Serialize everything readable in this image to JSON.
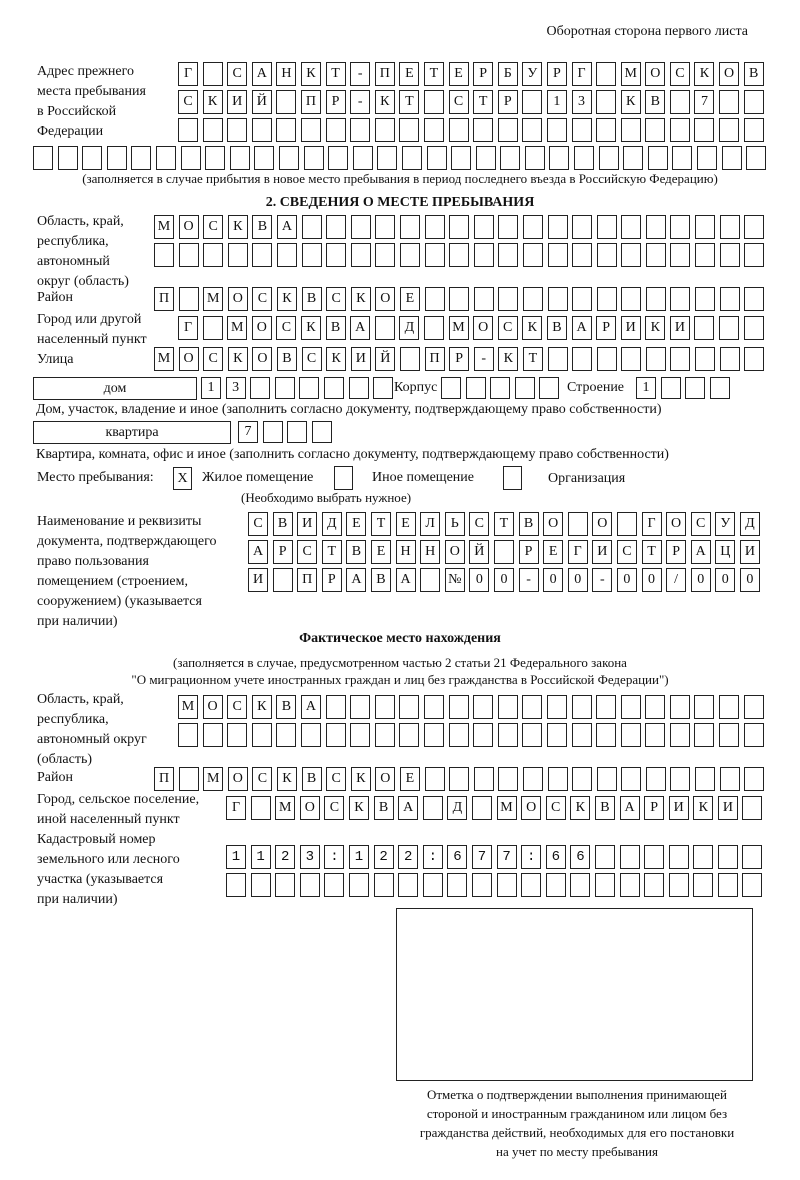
{
  "header": {
    "side_note": "Оборотная сторона первого листа"
  },
  "prev_address": {
    "label": [
      "Адрес прежнего",
      "места пребывания",
      "в Российской",
      "Федерации"
    ],
    "rows": [
      "Г САНКТ-ПЕТЕРБУРГ МОСКОВ",
      "СКИЙ ПР-КТ СТР 13 КВ 7",
      "",
      ""
    ],
    "caption": "(заполняется в случае прибытия в новое место пребывания в период последнего въезда в Российскую Федерацию)"
  },
  "stay": {
    "section_title": "2. СВЕДЕНИЯ О МЕСТЕ ПРЕБЫВАНИЯ",
    "region_label": [
      "Область, край,",
      "республика,",
      "автономный",
      "округ (область)"
    ],
    "region_rows": [
      "МОСКВА",
      ""
    ],
    "district_label": "Район",
    "district": "П МОСКВСКОЕ",
    "city_label": [
      "Город или другой",
      "населенный пункт"
    ],
    "city": "Г МОСКВА Д МОСКВАРИКИ",
    "street_label": "Улица",
    "street": "МОСКОВСКИЙ ПР-КТ",
    "house_type": "дом",
    "house": "13",
    "korpus_label": "Корпус",
    "korpus": "",
    "building_label": "Строение",
    "building": "1",
    "house_caption": "Дом, участок, владение и иное (заполнить согласно документу, подтверждающему право собственности)",
    "apt_type": "квартира",
    "apt": "7",
    "apt_caption": "Квартира, комната, офис и иное (заполнить согласно документу, подтверждающему право собственности)",
    "place_label": "Место пребывания:",
    "place_options": [
      {
        "label": "Жилое помещение",
        "mark": "X"
      },
      {
        "label": "Иное помещение",
        "mark": ""
      },
      {
        "label": "Организация",
        "mark": ""
      }
    ],
    "place_hint": "(Необходимо выбрать нужное)",
    "doc_label": [
      "Наименование и реквизиты",
      "документа, подтверждающего",
      "право пользования",
      "помещением (строением,",
      "сооружением) (указывается",
      "при наличии)"
    ],
    "doc_rows": [
      "СВИДЕТЕЛЬСТВО О ГОСУД",
      "АРСТВЕННОЙ РЕГИСТРАЦИ",
      "И ПРАВА №00-00-00/000"
    ]
  },
  "actual": {
    "title": "Фактическое место нахождения",
    "caption": [
      "(заполняется в случае, предусмотренном частью 2 статьи 21 Федерального закона",
      "\"О миграционном учете иностранных граждан и лиц без гражданства в Российской Федерации\")"
    ],
    "region_label": [
      "Область, край,",
      "республика,",
      "автономный округ",
      "(область)"
    ],
    "region_rows": [
      "МОСКВА",
      ""
    ],
    "district_label": "Район",
    "district": "П МОСКВСКОЕ",
    "city_label": [
      "Город, сельское поселение,",
      "иной населенный пункт"
    ],
    "city": "Г МОСКВА Д МОСКВАРИКИ",
    "cadastre_label": [
      "Кадастровый номер",
      "земельного или лесного",
      "участка (указывается",
      "при наличии)"
    ],
    "cadastre_rows": [
      "1123:122:677:66",
      ""
    ]
  },
  "confirmation": {
    "caption": [
      "Отметка о подтверждении выполнения принимающей",
      "стороной и иностранным гражданином или лицом без",
      "гражданства действий, необходимых для его постановки",
      "на учет по месту пребывания"
    ]
  }
}
